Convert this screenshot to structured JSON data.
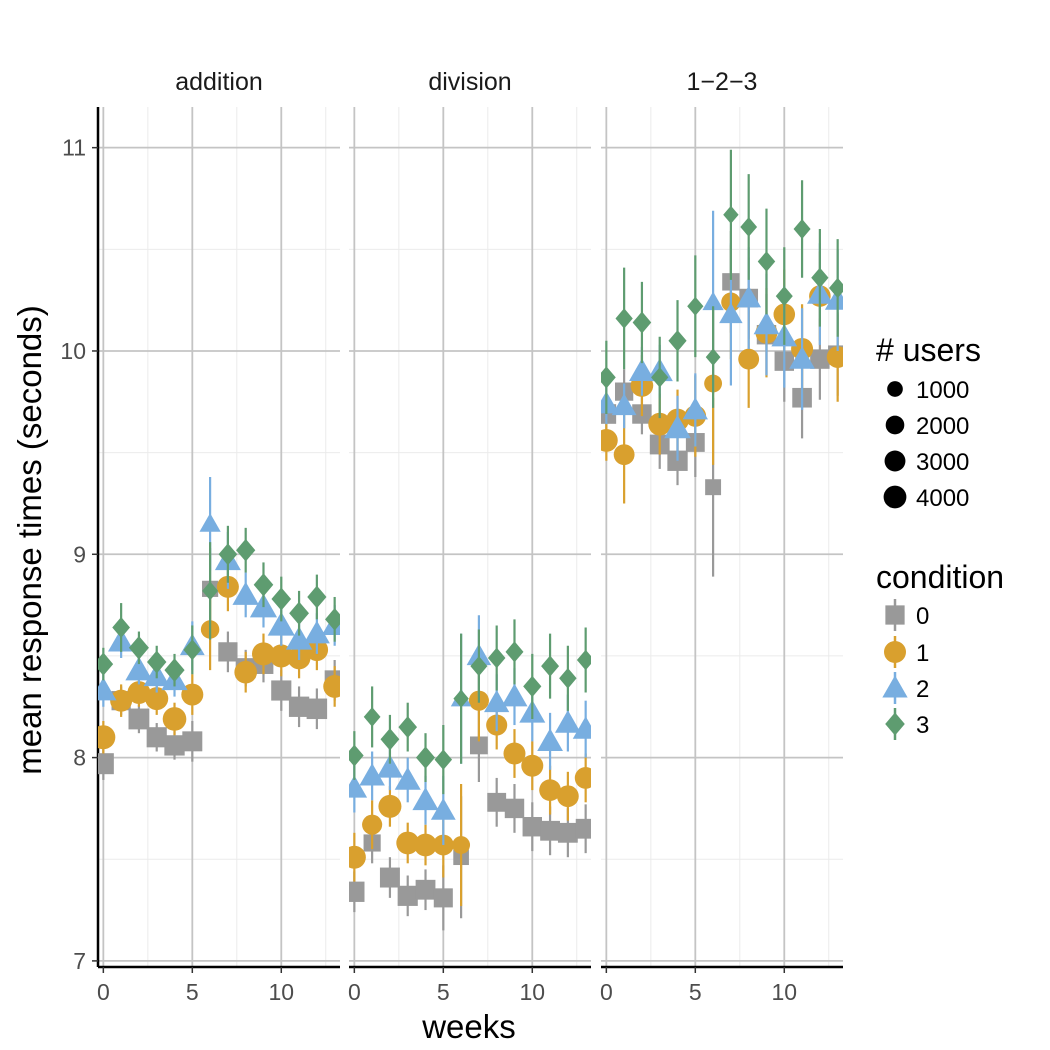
{
  "chart_data": {
    "type": "scatter",
    "facets": [
      "addition",
      "division",
      "1−2−3"
    ],
    "xlabel": "weeks",
    "ylabel": "mean response times (seconds)",
    "xlim": [
      -0.3,
      13.3
    ],
    "ylim": [
      6.97,
      11.2
    ],
    "x_ticks": [
      0,
      5,
      10
    ],
    "y_ticks": [
      7,
      8,
      9,
      10,
      11
    ],
    "grid": true,
    "legend_size": {
      "title": "# users",
      "entries": [
        {
          "label": "1000",
          "value": 1000
        },
        {
          "label": "2000",
          "value": 2000
        },
        {
          "label": "3000",
          "value": 3000
        },
        {
          "label": "4000",
          "value": 4000
        }
      ]
    },
    "legend_condition": {
      "title": "condition",
      "entries": [
        {
          "label": "0",
          "shape": "square",
          "color": "#999999"
        },
        {
          "label": "1",
          "shape": "circle",
          "color": "#D9A02E"
        },
        {
          "label": "2",
          "shape": "triangle",
          "color": "#78AEE0"
        },
        {
          "label": "3",
          "shape": "diamond",
          "color": "#5E9C70"
        }
      ]
    },
    "legend_position": "right",
    "series": [
      {
        "facet": "addition",
        "condition": "0",
        "x": [
          0,
          1,
          2,
          3,
          4,
          5,
          6,
          7,
          8,
          9,
          10,
          11,
          12,
          13
        ],
        "y": [
          7.97,
          8.28,
          8.19,
          8.1,
          8.06,
          8.08,
          8.83,
          8.52,
          8.44,
          8.46,
          8.33,
          8.25,
          8.24,
          8.38
        ],
        "err": [
          0.08,
          0.07,
          0.07,
          0.07,
          0.07,
          0.1,
          0.2,
          0.1,
          0.09,
          0.09,
          0.1,
          0.1,
          0.1,
          0.1
        ],
        "users": [
          4000,
          3000,
          3900,
          3500,
          3600,
          3400,
          1600,
          3000,
          3400,
          3300,
          3500,
          3600,
          3700,
          3400
        ]
      },
      {
        "facet": "addition",
        "condition": "1",
        "x": [
          0,
          1,
          2,
          3,
          4,
          5,
          6,
          7,
          8,
          9,
          10,
          11,
          12,
          13
        ],
        "y": [
          8.1,
          8.28,
          8.32,
          8.29,
          8.19,
          8.31,
          8.63,
          8.84,
          8.42,
          8.51,
          8.5,
          8.49,
          8.53,
          8.35
        ],
        "err": [
          0.08,
          0.08,
          0.07,
          0.08,
          0.08,
          0.1,
          0.2,
          0.12,
          0.1,
          0.1,
          0.1,
          0.1,
          0.1,
          0.1
        ],
        "users": [
          4000,
          3000,
          3400,
          3500,
          3800,
          3000,
          1600,
          3000,
          3300,
          3500,
          3500,
          3400,
          3200,
          3400
        ]
      },
      {
        "facet": "addition",
        "condition": "2",
        "x": [
          0,
          1,
          2,
          3,
          4,
          5,
          6,
          7,
          8,
          9,
          10,
          11,
          12,
          13
        ],
        "y": [
          8.33,
          8.57,
          8.43,
          8.4,
          8.38,
          8.55,
          9.15,
          8.97,
          8.8,
          8.74,
          8.65,
          8.58,
          8.61,
          8.65
        ],
        "err": [
          0.08,
          0.08,
          0.07,
          0.08,
          0.08,
          0.12,
          0.23,
          0.14,
          0.11,
          0.1,
          0.1,
          0.1,
          0.1,
          0.1
        ],
        "users": [
          3400,
          3400,
          3800,
          3400,
          3400,
          2800,
          1600,
          3300,
          3500,
          3800,
          3800,
          3500,
          3300,
          3100
        ]
      },
      {
        "facet": "addition",
        "condition": "3",
        "x": [
          0,
          1,
          2,
          3,
          4,
          5,
          6,
          7,
          8,
          9,
          10,
          11,
          12,
          13
        ],
        "y": [
          8.46,
          8.64,
          8.54,
          8.47,
          8.43,
          8.53,
          8.82,
          9.0,
          9.02,
          8.85,
          8.78,
          8.71,
          8.79,
          8.68
        ],
        "err": [
          0.08,
          0.12,
          0.08,
          0.08,
          0.08,
          0.12,
          0.24,
          0.14,
          0.11,
          0.11,
          0.11,
          0.11,
          0.11,
          0.11
        ],
        "users": [
          3000,
          2100,
          3200,
          2900,
          3300,
          2100,
          1400,
          2500,
          2800,
          3000,
          3000,
          3100,
          2800,
          2800
        ]
      },
      {
        "facet": "division",
        "condition": "0",
        "x": [
          0,
          1,
          2,
          3,
          4,
          5,
          6,
          7,
          8,
          9,
          10,
          11,
          12,
          13
        ],
        "y": [
          7.34,
          7.58,
          7.41,
          7.32,
          7.35,
          7.31,
          7.51,
          8.06,
          7.78,
          7.75,
          7.66,
          7.64,
          7.63,
          7.65
        ],
        "err": [
          0.1,
          0.1,
          0.1,
          0.1,
          0.1,
          0.16,
          0.3,
          0.18,
          0.12,
          0.12,
          0.12,
          0.12,
          0.12,
          0.12
        ],
        "users": [
          3600,
          2000,
          3400,
          3500,
          3300,
          2900,
          1400,
          2300,
          2800,
          3100,
          3100,
          3300,
          3300,
          3300
        ]
      },
      {
        "facet": "division",
        "condition": "1",
        "x": [
          0,
          1,
          2,
          3,
          4,
          5,
          6,
          7,
          8,
          9,
          10,
          11,
          12,
          13
        ],
        "y": [
          7.51,
          7.67,
          7.76,
          7.58,
          7.57,
          7.57,
          7.57,
          8.28,
          8.16,
          8.02,
          7.96,
          7.84,
          7.81,
          7.9
        ],
        "err": [
          0.12,
          0.12,
          0.1,
          0.1,
          0.1,
          0.16,
          0.3,
          0.2,
          0.12,
          0.12,
          0.12,
          0.12,
          0.12,
          0.12
        ],
        "users": [
          3500,
          2200,
          3500,
          3400,
          3400,
          2500,
          1400,
          2200,
          2600,
          3000,
          3000,
          2900,
          2900,
          2900
        ]
      },
      {
        "facet": "division",
        "condition": "2",
        "x": [
          0,
          1,
          2,
          3,
          4,
          5,
          6,
          7,
          8,
          9,
          10,
          11,
          12,
          13
        ],
        "y": [
          7.85,
          7.91,
          7.95,
          7.89,
          7.79,
          7.74,
          8.29,
          8.5,
          8.27,
          8.3,
          8.22,
          8.08,
          8.17,
          8.14
        ],
        "err": [
          0.12,
          0.12,
          0.11,
          0.11,
          0.12,
          0.17,
          0.32,
          0.2,
          0.14,
          0.14,
          0.14,
          0.14,
          0.14,
          0.14
        ],
        "users": [
          3100,
          3100,
          3400,
          3300,
          3400,
          2800,
          1400,
          2700,
          3000,
          3300,
          3300,
          3200,
          3200,
          3200
        ]
      },
      {
        "facet": "division",
        "condition": "3",
        "x": [
          0,
          1,
          2,
          3,
          4,
          5,
          6,
          7,
          8,
          9,
          10,
          11,
          12,
          13
        ],
        "y": [
          8.01,
          8.2,
          8.09,
          8.15,
          8.0,
          7.99,
          8.29,
          8.45,
          8.49,
          8.52,
          8.35,
          8.45,
          8.39,
          8.48
        ],
        "err": [
          0.12,
          0.15,
          0.12,
          0.12,
          0.12,
          0.17,
          0.32,
          0.18,
          0.16,
          0.16,
          0.16,
          0.16,
          0.16,
          0.16
        ],
        "users": [
          2500,
          1700,
          2600,
          2500,
          2700,
          2000,
          1200,
          1800,
          2000,
          2200,
          2300,
          2200,
          2000,
          2000
        ]
      },
      {
        "facet": "1−2−3",
        "condition": "0",
        "x": [
          0,
          1,
          2,
          3,
          4,
          5,
          6,
          7,
          8,
          9,
          10,
          11,
          12,
          13
        ],
        "y": [
          9.69,
          9.8,
          9.69,
          9.54,
          9.46,
          9.55,
          9.33,
          10.34,
          10.26,
          10.08,
          9.95,
          9.77,
          9.96,
          9.98
        ],
        "err": [
          0.08,
          0.11,
          0.1,
          0.12,
          0.12,
          0.17,
          0.44,
          0.25,
          0.2,
          0.2,
          0.2,
          0.2,
          0.2,
          0.2
        ],
        "users": [
          3200,
          2500,
          3100,
          3300,
          3600,
          2800,
          1500,
          2100,
          2700,
          3100,
          3100,
          3200,
          3100,
          3000
        ]
      },
      {
        "facet": "1−2−3",
        "condition": "1",
        "x": [
          0,
          1,
          2,
          3,
          4,
          5,
          6,
          7,
          8,
          9,
          10,
          11,
          12,
          13
        ],
        "y": [
          9.56,
          9.49,
          9.83,
          9.64,
          9.66,
          9.68,
          9.84,
          10.24,
          9.96,
          10.09,
          10.18,
          10.01,
          10.27,
          9.97
        ],
        "err": [
          0.1,
          0.24,
          0.15,
          0.15,
          0.15,
          0.2,
          0.4,
          0.28,
          0.24,
          0.22,
          0.22,
          0.22,
          0.22,
          0.22
        ],
        "users": [
          3400,
          2500,
          3300,
          3400,
          3400,
          2800,
          1400,
          1900,
          2500,
          3000,
          2800,
          3000,
          2800,
          2900
        ]
      },
      {
        "facet": "1−2−3",
        "condition": "2",
        "x": [
          0,
          1,
          2,
          3,
          4,
          5,
          6,
          7,
          8,
          9,
          10,
          11,
          12,
          13
        ],
        "y": [
          9.74,
          9.73,
          9.9,
          9.9,
          9.62,
          9.71,
          10.24,
          10.18,
          10.26,
          10.13,
          10.07,
          9.96,
          10.28,
          10.25
        ],
        "err": [
          0.1,
          0.11,
          0.12,
          0.13,
          0.16,
          0.18,
          0.45,
          0.35,
          0.25,
          0.25,
          0.25,
          0.25,
          0.25,
          0.25
        ],
        "users": [
          3000,
          2800,
          3200,
          3400,
          3600,
          3000,
          1600,
          2300,
          2800,
          3200,
          3200,
          3200,
          3200,
          3100
        ]
      },
      {
        "facet": "1−2−3",
        "condition": "3",
        "x": [
          0,
          1,
          2,
          3,
          4,
          5,
          6,
          7,
          8,
          9,
          10,
          11,
          12,
          13
        ],
        "y": [
          9.87,
          10.16,
          10.14,
          9.87,
          10.05,
          10.22,
          9.97,
          10.67,
          10.61,
          10.44,
          10.27,
          10.6,
          10.36,
          10.31
        ],
        "err": [
          0.18,
          0.25,
          0.2,
          0.2,
          0.2,
          0.25,
          0.25,
          0.32,
          0.26,
          0.26,
          0.24,
          0.24,
          0.24,
          0.24
        ],
        "users": [
          2600,
          1900,
          2500,
          1900,
          2300,
          1500,
          1000,
          1200,
          1700,
          2000,
          1800,
          1800,
          1900,
          1900
        ]
      }
    ]
  }
}
